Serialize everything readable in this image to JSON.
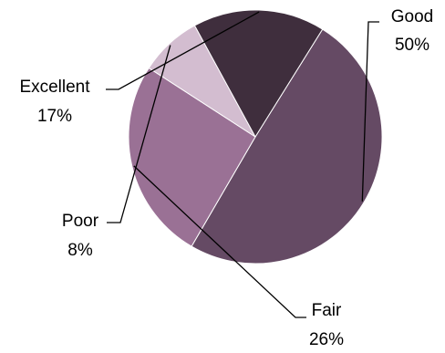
{
  "chart_data": {
    "type": "pie",
    "title": "",
    "legend": "none",
    "data_labels": "outside with leader lines",
    "slices": [
      {
        "name": "Good",
        "value": 50,
        "label": "50%",
        "color": "#654a64"
      },
      {
        "name": "Fair",
        "value": 26,
        "label": "26%",
        "color": "#9a7195"
      },
      {
        "name": "Poor",
        "value": 8,
        "label": "8%",
        "color": "#d3bdd0"
      },
      {
        "name": "Excellent",
        "value": 17,
        "label": "17%",
        "color": "#3f2e3d"
      }
    ]
  }
}
